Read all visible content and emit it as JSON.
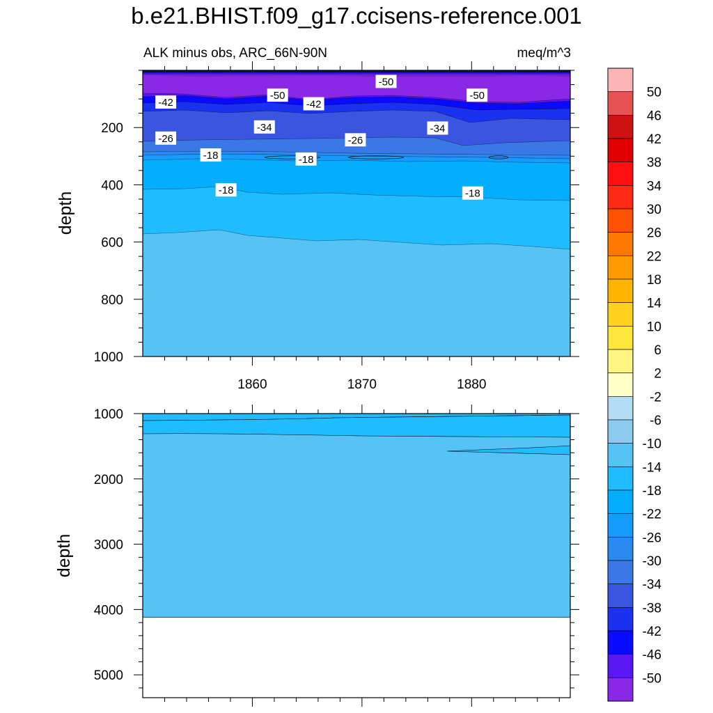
{
  "title": "b.e21.BHIST.f09_g17.ccisens-reference.001",
  "chart_data": {
    "type": "heatmap",
    "left_string": "ALK minus obs, ARC_66N-90N",
    "right_string": "meq/m^3",
    "ylabel": "depth",
    "x_range": [
      1850,
      1889
    ],
    "x_ticks": [
      1860,
      1870,
      1880
    ],
    "upper_panel": {
      "ylim": [
        0,
        1000
      ],
      "y_ticks": [
        200,
        400,
        600,
        800,
        1000
      ]
    },
    "lower_panel": {
      "ylim": [
        1000,
        5350
      ],
      "y_ticks": [
        1000,
        2000,
        3000,
        4000,
        5000
      ]
    },
    "ocean_bottom_depth": 4120,
    "contour_labels": [
      {
        "text": "-50",
        "x": 1872.2,
        "y": 40
      },
      {
        "text": "-50",
        "x": 1862.3,
        "y": 88
      },
      {
        "text": "-50",
        "x": 1880.5,
        "y": 88
      },
      {
        "text": "-42",
        "x": 1852.1,
        "y": 112
      },
      {
        "text": "-42",
        "x": 1865.6,
        "y": 118
      },
      {
        "text": "-34",
        "x": 1861.1,
        "y": 199
      },
      {
        "text": "-34",
        "x": 1876.9,
        "y": 203
      },
      {
        "text": "-26",
        "x": 1852.1,
        "y": 238
      },
      {
        "text": "-26",
        "x": 1869.4,
        "y": 244
      },
      {
        "text": "-18",
        "x": 1856.2,
        "y": 297
      },
      {
        "text": "-18",
        "x": 1864.9,
        "y": 311
      },
      {
        "text": "-18",
        "x": 1857.6,
        "y": 419
      },
      {
        "text": "-18",
        "x": 1880.1,
        "y": 430
      }
    ],
    "colorbar": {
      "labels": [
        "50",
        "46",
        "42",
        "38",
        "34",
        "30",
        "26",
        "22",
        "18",
        "14",
        "10",
        "6",
        "2",
        "-2",
        "-6",
        "-10",
        "-14",
        "-18",
        "-22",
        "-26",
        "-30",
        "-34",
        "-38",
        "-42",
        "-46",
        "-50"
      ],
      "colors": [
        "#fbb5b5",
        "#e55353",
        "#cd1212",
        "#e00000",
        "#ff0f0f",
        "#ff2a14",
        "#ff5200",
        "#ff7800",
        "#ff9a00",
        "#ffb400",
        "#ffd21e",
        "#ffe63c",
        "#fff582",
        "#ffffc8",
        "#b4dcf5",
        "#8ccbee",
        "#55c3f5",
        "#1fbdff",
        "#05adff",
        "#169bff",
        "#2a8aef",
        "#3a78e5",
        "#3a55e0",
        "#1a32f0",
        "#0a0aff",
        "#5a17f5",
        "#8a28e8"
      ]
    }
  }
}
